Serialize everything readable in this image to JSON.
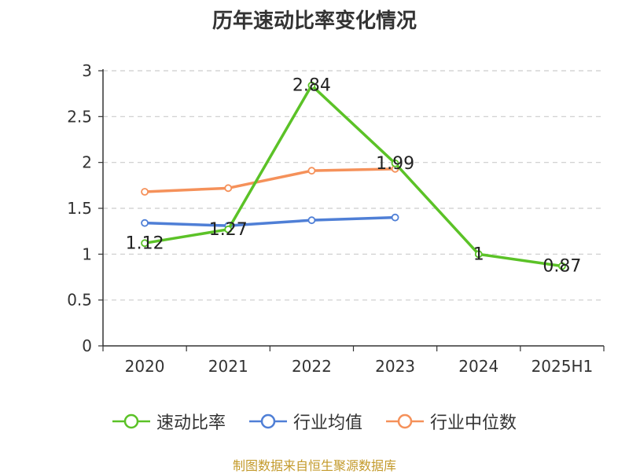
{
  "chart_data": {
    "type": "line",
    "title": "历年速动比率变化情况",
    "categories": [
      "2020",
      "2021",
      "2022",
      "2023",
      "2024",
      "2025H1"
    ],
    "ylim": [
      0,
      3
    ],
    "yticks": [
      "0",
      "0.5",
      "1",
      "1.5",
      "2",
      "2.5",
      "3"
    ],
    "grid": true,
    "legend_position": "bottom",
    "series": [
      {
        "name": "速动比率",
        "color": "#5bc227",
        "values": [
          1.12,
          1.27,
          2.84,
          1.99,
          1,
          0.87
        ],
        "labels": [
          "1.12",
          "1.27",
          "2.84",
          "1.99",
          "1",
          "0.87"
        ]
      },
      {
        "name": "行业均值",
        "color": "#4f7fd6",
        "values": [
          1.34,
          1.31,
          1.37,
          1.4,
          null,
          null
        ]
      },
      {
        "name": "行业中位数",
        "color": "#f5915a",
        "values": [
          1.68,
          1.72,
          1.91,
          1.93,
          null,
          null
        ]
      }
    ]
  },
  "source_note": "制图数据来自恒生聚源数据库"
}
